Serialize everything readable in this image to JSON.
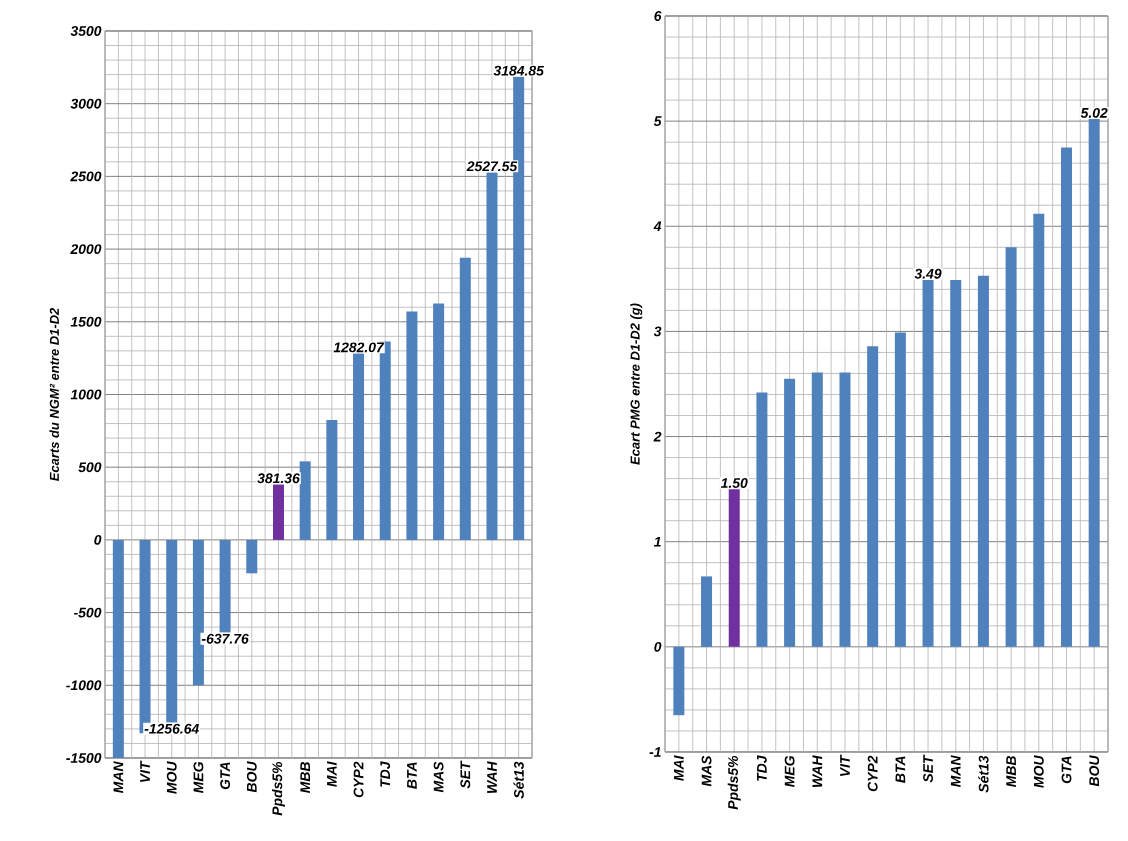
{
  "chart_data": [
    {
      "type": "bar",
      "ylabel": "Ecarts du NGM² entre D1-D2",
      "categories": [
        "MAN",
        "VIT",
        "MOU",
        "MEG",
        "GTA",
        "BOU",
        "Ppds5%",
        "MBB",
        "MAI",
        "CYP2",
        "TDJ",
        "BTA",
        "MAS",
        "SET",
        "WAH",
        "Sét13"
      ],
      "values": [
        -1500,
        -1330,
        -1256.64,
        -1000,
        -637.76,
        -230,
        381.36,
        540,
        825,
        1282.07,
        1365,
        1570,
        1625,
        1940,
        2527.55,
        3184.85
      ],
      "value_labels": [
        null,
        null,
        "-1256.64",
        null,
        "-637.76",
        null,
        "381.36",
        null,
        null,
        "1282.07",
        null,
        null,
        null,
        null,
        "2527.55",
        "3184.85"
      ],
      "colors": [
        "#4f81bd",
        "#4f81bd",
        "#4f81bd",
        "#4f81bd",
        "#4f81bd",
        "#4f81bd",
        "#7030a0",
        "#4f81bd",
        "#4f81bd",
        "#4f81bd",
        "#4f81bd",
        "#4f81bd",
        "#4f81bd",
        "#4f81bd",
        "#4f81bd",
        "#4f81bd"
      ],
      "ylim": [
        -1500,
        3500
      ],
      "yticks": [
        -1500,
        -1000,
        -500,
        0,
        500,
        1000,
        1500,
        2000,
        2500,
        3000,
        3500
      ],
      "grid": true
    },
    {
      "type": "bar",
      "ylabel": "Ecart PMG entre D1-D2 (g)",
      "categories": [
        "MAI",
        "MAS",
        "Ppds5%",
        "TDJ",
        "MEG",
        "WAH",
        "VIT",
        "CYP2",
        "BTA",
        "SET",
        "MAN",
        "Sét13",
        "MBB",
        "MOU",
        "GTA",
        "BOU"
      ],
      "values": [
        -0.65,
        0.67,
        1.5,
        2.42,
        2.55,
        2.61,
        2.61,
        2.86,
        2.99,
        3.49,
        3.49,
        3.53,
        3.8,
        4.12,
        4.75,
        5.02
      ],
      "value_labels": [
        null,
        null,
        "1.50",
        null,
        null,
        null,
        null,
        null,
        null,
        "3.49",
        null,
        null,
        null,
        null,
        null,
        "5.02"
      ],
      "colors": [
        "#4f81bd",
        "#4f81bd",
        "#7030a0",
        "#4f81bd",
        "#4f81bd",
        "#4f81bd",
        "#4f81bd",
        "#4f81bd",
        "#4f81bd",
        "#4f81bd",
        "#4f81bd",
        "#4f81bd",
        "#4f81bd",
        "#4f81bd",
        "#4f81bd",
        "#4f81bd"
      ],
      "ylim": [
        -1,
        6
      ],
      "yticks": [
        -1,
        0,
        1,
        2,
        3,
        4,
        5,
        6
      ],
      "grid": true
    }
  ]
}
